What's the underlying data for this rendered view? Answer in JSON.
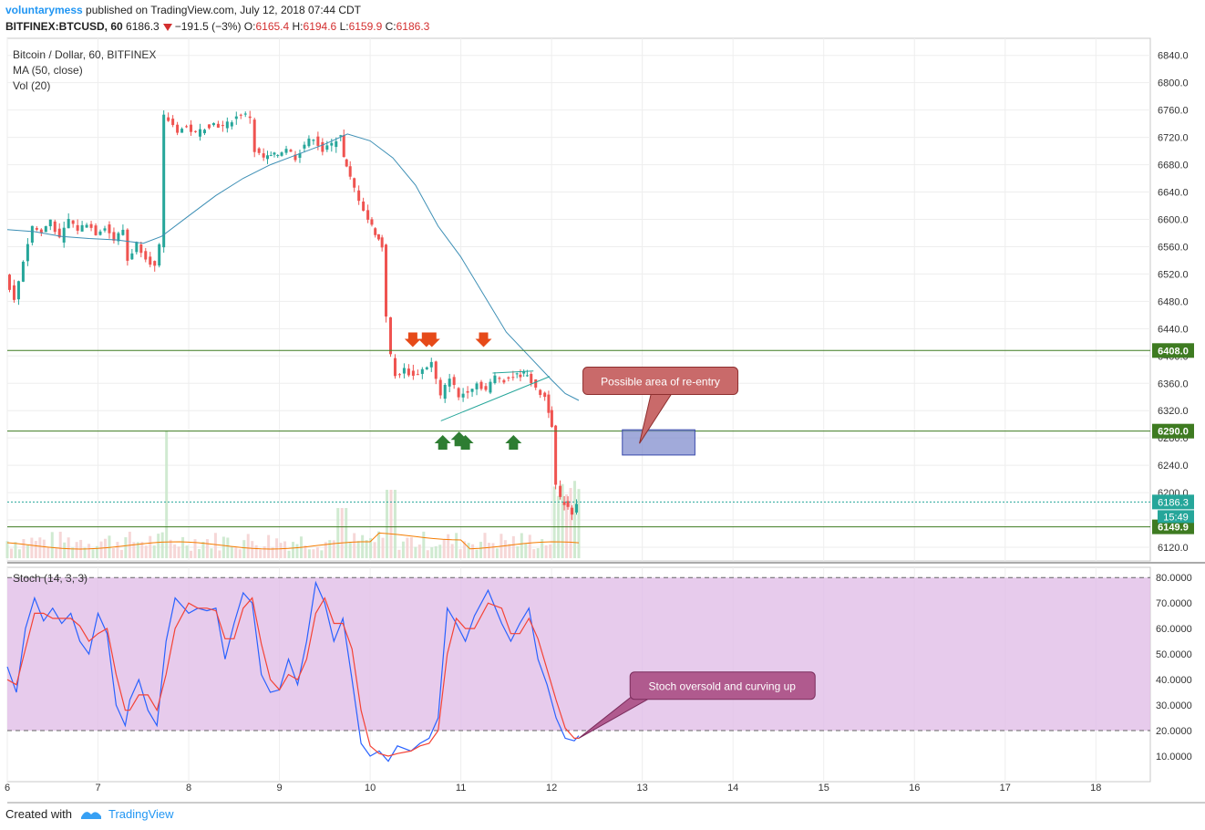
{
  "header": {
    "author": "voluntarymess",
    "published_text": "published on TradingView.com, July 12, 2018 07:44 CDT",
    "symbol_line": "BITFINEX:BTCUSD, 60",
    "change": "−191.5 (−3%)",
    "open_label": "O:",
    "open": "6165.4",
    "high_label": "H:",
    "high": "6194.6",
    "low_label": "L:",
    "low": "6159.9",
    "close_label": "C:",
    "close": "6186.3"
  },
  "legend": {
    "title": "Bitcoin / Dollar, 60, BITFINEX",
    "ma": "MA (50, close)",
    "vol": "Vol (20)",
    "stoch": "Stoch (14, 3, 3)"
  },
  "footer": {
    "created_with": "Created with",
    "brand": "TradingView"
  },
  "colors": {
    "up": "#26a69a",
    "down": "#ef5350",
    "ma": "#3d8fb5",
    "vol_ma": "#f57c00",
    "stoch_k": "#2962ff",
    "stoch_d": "#f44336",
    "stoch_band": "#e1bee7",
    "level_line": "#3e7b21",
    "label_green": "#3e7b21",
    "last_price": "#26a69a"
  },
  "chart_data": [
    {
      "type": "candlestick",
      "title": "Bitcoin / Dollar, 60, BITFINEX",
      "y_ticks": [
        6120,
        6160,
        6200,
        6240,
        6280,
        6320,
        6360,
        6400,
        6440,
        6480,
        6520,
        6560,
        6600,
        6640,
        6680,
        6720,
        6760,
        6800,
        6840
      ],
      "y_tick_labels": [
        "6120.0",
        "6160.0",
        "6200.0",
        "6240.0",
        "6280.0",
        "6320.0",
        "6360.0",
        "6400.0",
        "6440.0",
        "6480.0",
        "6520.0",
        "6560.0",
        "6600.0",
        "6640.0",
        "6680.0",
        "6720.0",
        "6760.0",
        "6800.0",
        "6840.0"
      ],
      "ylim": [
        6100,
        6865
      ],
      "x_ticks": [
        "6",
        "7",
        "8",
        "9",
        "10",
        "11",
        "12",
        "13",
        "14",
        "15",
        "16",
        "17",
        "18"
      ],
      "x_tick_days": [
        6,
        7,
        8,
        9,
        10,
        11,
        12,
        13,
        14,
        15,
        16,
        17,
        18
      ],
      "xlim": [
        6,
        18.6
      ],
      "close_path": [
        [
          6.0,
          6520
        ],
        [
          6.1,
          6480
        ],
        [
          6.2,
          6540
        ],
        [
          6.3,
          6590
        ],
        [
          6.4,
          6580
        ],
        [
          6.5,
          6600
        ],
        [
          6.6,
          6570
        ],
        [
          6.7,
          6600
        ],
        [
          6.8,
          6585
        ],
        [
          6.9,
          6595
        ],
        [
          7.0,
          6580
        ],
        [
          7.1,
          6590
        ],
        [
          7.2,
          6570
        ],
        [
          7.3,
          6585
        ],
        [
          7.35,
          6540
        ],
        [
          7.45,
          6565
        ],
        [
          7.55,
          6545
        ],
        [
          7.65,
          6530
        ],
        [
          7.7,
          6560
        ],
        [
          7.75,
          6750
        ],
        [
          7.8,
          6745
        ],
        [
          7.9,
          6730
        ],
        [
          8.0,
          6735
        ],
        [
          8.1,
          6725
        ],
        [
          8.2,
          6735
        ],
        [
          8.3,
          6740
        ],
        [
          8.4,
          6735
        ],
        [
          8.5,
          6745
        ],
        [
          8.6,
          6755
        ],
        [
          8.7,
          6750
        ],
        [
          8.75,
          6700
        ],
        [
          8.85,
          6690
        ],
        [
          9.0,
          6695
        ],
        [
          9.1,
          6705
        ],
        [
          9.2,
          6690
        ],
        [
          9.3,
          6710
        ],
        [
          9.4,
          6720
        ],
        [
          9.5,
          6700
        ],
        [
          9.6,
          6710
        ],
        [
          9.7,
          6725
        ],
        [
          9.72,
          6690
        ],
        [
          9.8,
          6660
        ],
        [
          9.9,
          6630
        ],
        [
          10.0,
          6600
        ],
        [
          10.15,
          6560
        ],
        [
          10.2,
          6460
        ],
        [
          10.25,
          6400
        ],
        [
          10.3,
          6370
        ],
        [
          10.4,
          6380
        ],
        [
          10.5,
          6370
        ],
        [
          10.6,
          6380
        ],
        [
          10.7,
          6390
        ],
        [
          10.8,
          6340
        ],
        [
          10.9,
          6370
        ],
        [
          11.0,
          6340
        ],
        [
          11.1,
          6350
        ],
        [
          11.2,
          6360
        ],
        [
          11.3,
          6350
        ],
        [
          11.4,
          6370
        ],
        [
          11.5,
          6365
        ],
        [
          11.6,
          6370
        ],
        [
          11.75,
          6375
        ],
        [
          11.85,
          6350
        ],
        [
          11.95,
          6340
        ],
        [
          12.02,
          6300
        ],
        [
          12.07,
          6210
        ],
        [
          12.12,
          6190
        ],
        [
          12.2,
          6180
        ],
        [
          12.25,
          6170
        ],
        [
          12.3,
          6186.3
        ]
      ],
      "ma_path": [
        [
          6.0,
          6585
        ],
        [
          6.3,
          6582
        ],
        [
          6.6,
          6575
        ],
        [
          6.9,
          6572
        ],
        [
          7.2,
          6570
        ],
        [
          7.5,
          6565
        ],
        [
          7.7,
          6575
        ],
        [
          8.0,
          6605
        ],
        [
          8.3,
          6635
        ],
        [
          8.6,
          6660
        ],
        [
          8.9,
          6680
        ],
        [
          9.2,
          6695
        ],
        [
          9.5,
          6710
        ],
        [
          9.75,
          6725
        ],
        [
          10.0,
          6715
        ],
        [
          10.25,
          6690
        ],
        [
          10.5,
          6650
        ],
        [
          10.75,
          6590
        ],
        [
          11.0,
          6545
        ],
        [
          11.25,
          6490
        ],
        [
          11.5,
          6435
        ],
        [
          11.75,
          6400
        ],
        [
          12.0,
          6365
        ],
        [
          12.15,
          6345
        ],
        [
          12.3,
          6335
        ]
      ],
      "levels": [
        {
          "value": 6408.0,
          "label": "6408.0"
        },
        {
          "value": 6290.0,
          "label": "6290.0"
        },
        {
          "value": 6149.9,
          "label": "6149.9"
        }
      ],
      "last_price": {
        "value": 6186.3,
        "label": "6186.3",
        "countdown": "15:49"
      },
      "sell_arrows": [
        [
          10.47,
          6405
        ],
        [
          10.62,
          6405
        ],
        [
          10.68,
          6405
        ],
        [
          11.25,
          6405
        ]
      ],
      "buy_arrows": [
        [
          10.8,
          6295
        ],
        [
          10.98,
          6300
        ],
        [
          11.05,
          6295
        ],
        [
          11.58,
          6295
        ]
      ],
      "triangle_lines": [
        [
          [
            10.78,
            6305
          ],
          [
            11.98,
            6370
          ]
        ],
        [
          [
            11.35,
            6375
          ],
          [
            11.8,
            6378
          ]
        ]
      ],
      "reentry_box": {
        "x0": 12.78,
        "x1": 13.58,
        "y0": 6255,
        "y1": 6292
      },
      "annotations": [
        {
          "text": "Possible area of re-entry",
          "x": 13.25,
          "y": 6365
        }
      ]
    },
    {
      "type": "line",
      "title": "Stoch (14, 3, 3)",
      "y_ticks": [
        10,
        20,
        30,
        40,
        50,
        60,
        70,
        80
      ],
      "y_tick_labels": [
        "10.0000",
        "20.0000",
        "30.0000",
        "40.0000",
        "50.0000",
        "60.0000",
        "70.0000",
        "80.0000"
      ],
      "ylim": [
        0,
        84
      ],
      "band": [
        20,
        80
      ],
      "series": [
        {
          "values_k": [
            [
              6.0,
              45
            ],
            [
              6.1,
              35
            ],
            [
              6.2,
              60
            ],
            [
              6.3,
              72
            ],
            [
              6.4,
              63
            ],
            [
              6.5,
              68
            ],
            [
              6.6,
              62
            ],
            [
              6.7,
              66
            ],
            [
              6.8,
              55
            ],
            [
              6.9,
              50
            ],
            [
              7.0,
              66
            ],
            [
              7.1,
              58
            ],
            [
              7.2,
              30
            ],
            [
              7.3,
              22
            ],
            [
              7.35,
              32
            ],
            [
              7.45,
              40
            ],
            [
              7.55,
              28
            ],
            [
              7.65,
              22
            ],
            [
              7.75,
              55
            ],
            [
              7.85,
              72
            ],
            [
              8.0,
              66
            ],
            [
              8.1,
              68
            ],
            [
              8.2,
              67
            ],
            [
              8.3,
              68
            ],
            [
              8.4,
              48
            ],
            [
              8.5,
              62
            ],
            [
              8.6,
              74
            ],
            [
              8.7,
              70
            ],
            [
              8.8,
              42
            ],
            [
              8.9,
              35
            ],
            [
              9.0,
              36
            ],
            [
              9.1,
              48
            ],
            [
              9.2,
              38
            ],
            [
              9.3,
              55
            ],
            [
              9.4,
              78
            ],
            [
              9.5,
              70
            ],
            [
              9.6,
              55
            ],
            [
              9.7,
              64
            ],
            [
              9.8,
              40
            ],
            [
              9.9,
              15
            ],
            [
              10.0,
              10
            ],
            [
              10.1,
              12
            ],
            [
              10.2,
              8
            ],
            [
              10.3,
              14
            ],
            [
              10.45,
              12
            ],
            [
              10.55,
              15
            ],
            [
              10.65,
              17
            ],
            [
              10.75,
              25
            ],
            [
              10.85,
              68
            ],
            [
              10.95,
              62
            ],
            [
              11.05,
              55
            ],
            [
              11.15,
              65
            ],
            [
              11.3,
              75
            ],
            [
              11.45,
              62
            ],
            [
              11.55,
              55
            ],
            [
              11.65,
              62
            ],
            [
              11.75,
              68
            ],
            [
              11.85,
              48
            ],
            [
              11.95,
              38
            ],
            [
              12.05,
              25
            ],
            [
              12.15,
              17
            ],
            [
              12.25,
              16
            ],
            [
              12.3,
              18
            ]
          ]
        },
        {
          "values_d": [
            [
              6.0,
              40
            ],
            [
              6.1,
              38
            ],
            [
              6.2,
              52
            ],
            [
              6.3,
              66
            ],
            [
              6.4,
              66
            ],
            [
              6.5,
              64
            ],
            [
              6.6,
              64
            ],
            [
              6.7,
              64
            ],
            [
              6.8,
              61
            ],
            [
              6.9,
              55
            ],
            [
              7.0,
              58
            ],
            [
              7.1,
              60
            ],
            [
              7.2,
              42
            ],
            [
              7.3,
              28
            ],
            [
              7.35,
              28
            ],
            [
              7.45,
              34
            ],
            [
              7.55,
              34
            ],
            [
              7.65,
              28
            ],
            [
              7.75,
              42
            ],
            [
              7.85,
              60
            ],
            [
              8.0,
              70
            ],
            [
              8.1,
              68
            ],
            [
              8.2,
              68
            ],
            [
              8.3,
              67
            ],
            [
              8.4,
              56
            ],
            [
              8.5,
              56
            ],
            [
              8.6,
              68
            ],
            [
              8.7,
              72
            ],
            [
              8.8,
              54
            ],
            [
              8.9,
              40
            ],
            [
              9.0,
              36
            ],
            [
              9.1,
              42
            ],
            [
              9.2,
              40
            ],
            [
              9.3,
              48
            ],
            [
              9.4,
              66
            ],
            [
              9.5,
              72
            ],
            [
              9.6,
              62
            ],
            [
              9.7,
              62
            ],
            [
              9.8,
              52
            ],
            [
              9.9,
              28
            ],
            [
              10.0,
              14
            ],
            [
              10.1,
              11
            ],
            [
              10.2,
              10
            ],
            [
              10.3,
              11
            ],
            [
              10.45,
              12
            ],
            [
              10.55,
              14
            ],
            [
              10.65,
              15
            ],
            [
              10.75,
              20
            ],
            [
              10.85,
              50
            ],
            [
              10.95,
              64
            ],
            [
              11.05,
              60
            ],
            [
              11.15,
              60
            ],
            [
              11.3,
              70
            ],
            [
              11.45,
              68
            ],
            [
              11.55,
              58
            ],
            [
              11.65,
              58
            ],
            [
              11.75,
              64
            ],
            [
              11.85,
              56
            ],
            [
              11.95,
              44
            ],
            [
              12.05,
              32
            ],
            [
              12.15,
              21
            ],
            [
              12.25,
              17
            ],
            [
              12.3,
              17
            ]
          ]
        }
      ],
      "annotations": [
        {
          "text": "Stoch oversold and curving up",
          "x": 13.9,
          "y": 38
        }
      ]
    }
  ]
}
